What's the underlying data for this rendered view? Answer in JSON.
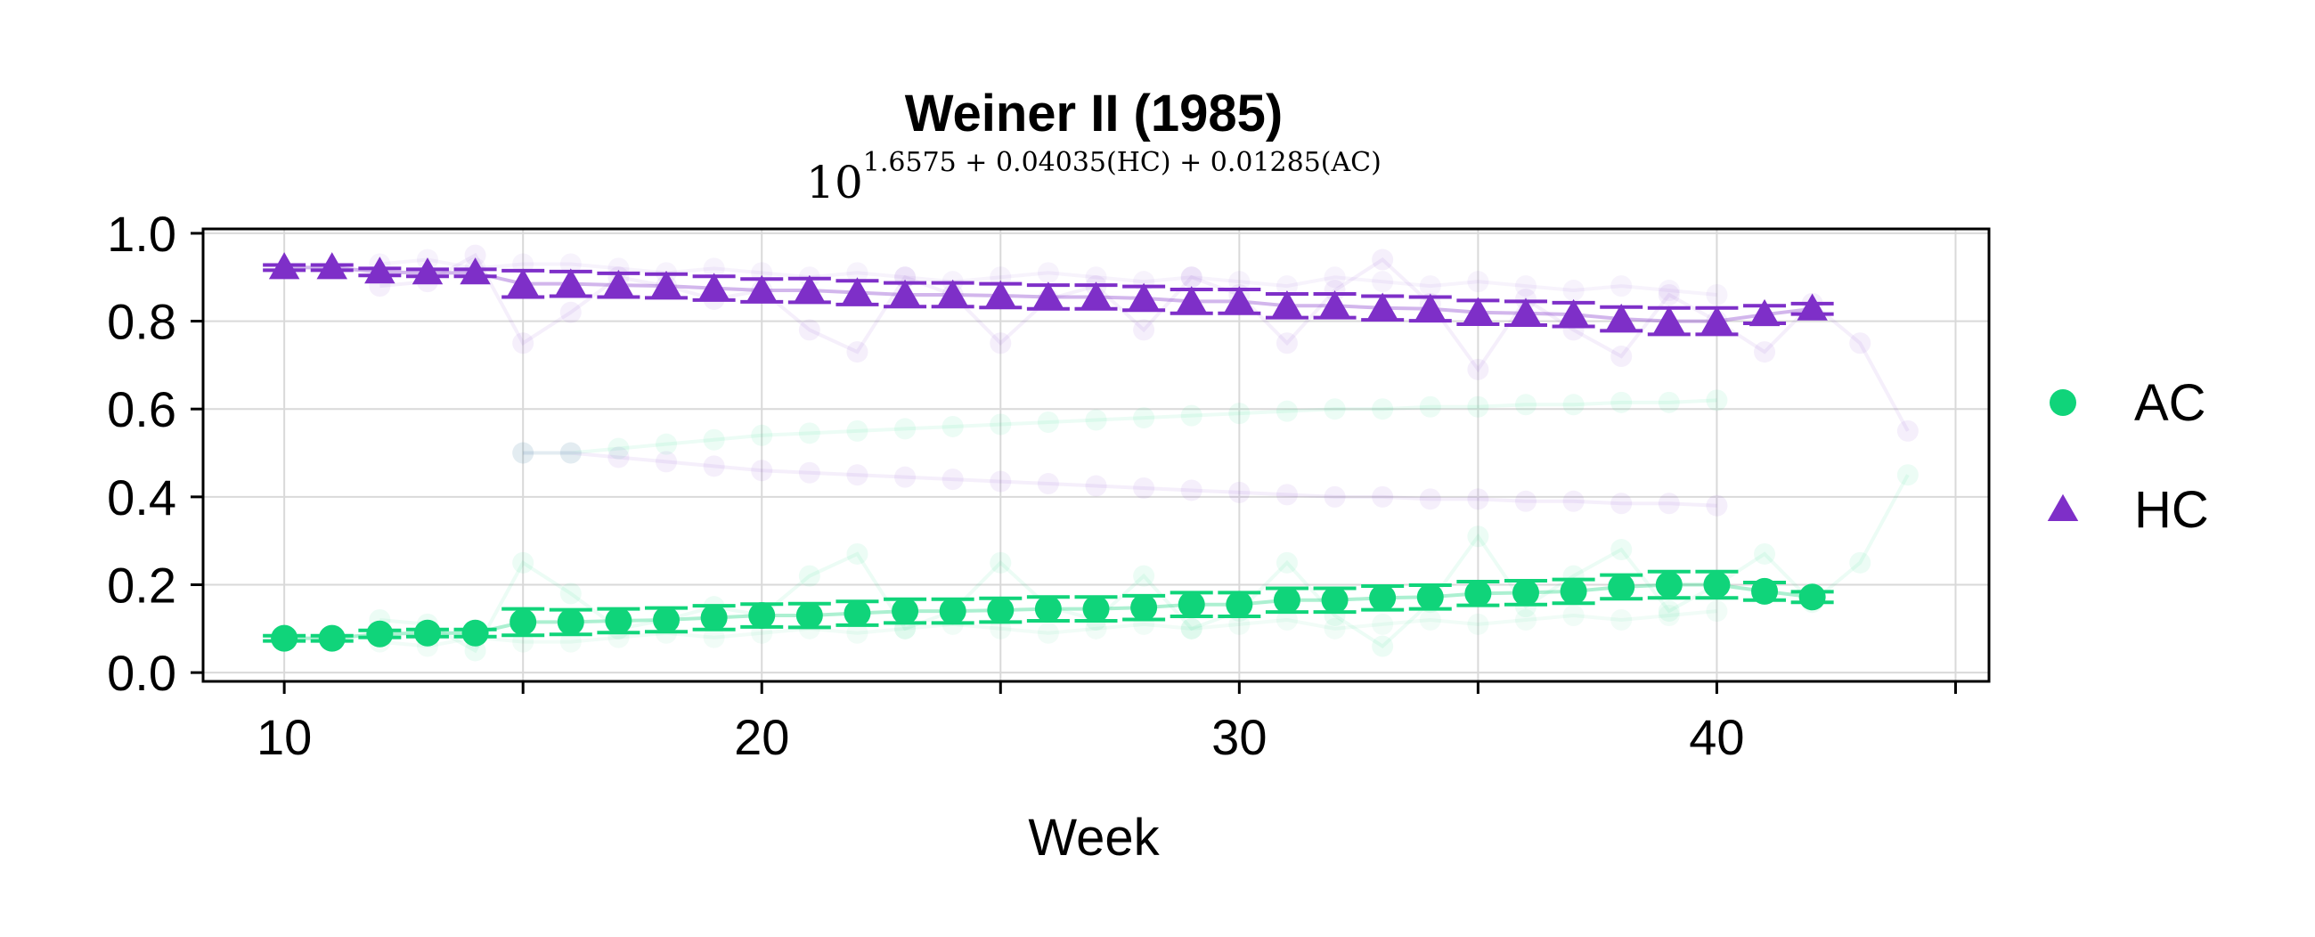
{
  "chart_data": {
    "type": "line",
    "title": "Weiner II (1985)",
    "subtitle": {
      "base": "10",
      "exponent": "1.6575 + 0.04035(HC) + 0.01285(AC)"
    },
    "xlabel": "Week",
    "ylabel": "",
    "xlim": [
      8.3,
      45.7
    ],
    "ylim": [
      -0.02,
      1.01
    ],
    "x_ticks": [
      10,
      15,
      20,
      25,
      30,
      35,
      40,
      45
    ],
    "x_tick_labels": [
      "10",
      "",
      "20",
      "",
      "30",
      "",
      "40",
      ""
    ],
    "y_ticks": [
      0.0,
      0.2,
      0.4,
      0.6,
      0.8,
      1.0
    ],
    "y_tick_labels": [
      "0.0",
      "0.2",
      "0.4",
      "0.6",
      "0.8",
      "1.0"
    ],
    "grid": true,
    "legend_position": "right",
    "series": [
      {
        "name": "AC",
        "color": "#10d47a",
        "marker": "circle",
        "x": [
          10,
          11,
          12,
          13,
          14,
          15,
          16,
          17,
          18,
          19,
          20,
          21,
          22,
          23,
          24,
          25,
          26,
          27,
          28,
          29,
          30,
          31,
          32,
          33,
          34,
          35,
          36,
          37,
          38,
          39,
          40,
          41,
          42
        ],
        "values": [
          0.078,
          0.078,
          0.088,
          0.09,
          0.09,
          0.115,
          0.115,
          0.118,
          0.12,
          0.125,
          0.13,
          0.13,
          0.135,
          0.14,
          0.14,
          0.142,
          0.145,
          0.145,
          0.148,
          0.155,
          0.155,
          0.165,
          0.165,
          0.17,
          0.172,
          0.18,
          0.182,
          0.185,
          0.195,
          0.2,
          0.2,
          0.185,
          0.172
        ],
        "error": [
          0.006,
          0.006,
          0.008,
          0.008,
          0.008,
          0.03,
          0.028,
          0.027,
          0.027,
          0.027,
          0.026,
          0.027,
          0.027,
          0.027,
          0.027,
          0.027,
          0.027,
          0.027,
          0.027,
          0.027,
          0.027,
          0.027,
          0.027,
          0.027,
          0.027,
          0.027,
          0.027,
          0.027,
          0.027,
          0.03,
          0.03,
          0.02,
          0.012
        ]
      },
      {
        "name": "HC",
        "color": "#7e2fc8",
        "marker": "triangle",
        "x": [
          10,
          11,
          12,
          13,
          14,
          15,
          16,
          17,
          18,
          19,
          20,
          21,
          22,
          23,
          24,
          25,
          26,
          27,
          28,
          29,
          30,
          31,
          32,
          33,
          34,
          35,
          36,
          37,
          38,
          39,
          40,
          41,
          42
        ],
        "values": [
          0.922,
          0.922,
          0.912,
          0.91,
          0.91,
          0.885,
          0.885,
          0.882,
          0.88,
          0.875,
          0.87,
          0.87,
          0.865,
          0.86,
          0.86,
          0.858,
          0.855,
          0.855,
          0.852,
          0.845,
          0.845,
          0.835,
          0.835,
          0.83,
          0.828,
          0.82,
          0.818,
          0.815,
          0.805,
          0.8,
          0.8,
          0.815,
          0.828
        ],
        "error": [
          0.006,
          0.006,
          0.008,
          0.008,
          0.008,
          0.03,
          0.028,
          0.027,
          0.027,
          0.027,
          0.026,
          0.027,
          0.027,
          0.027,
          0.027,
          0.027,
          0.027,
          0.027,
          0.027,
          0.027,
          0.027,
          0.027,
          0.027,
          0.027,
          0.027,
          0.027,
          0.027,
          0.027,
          0.027,
          0.03,
          0.03,
          0.02,
          0.012
        ]
      }
    ],
    "background_series": [
      {
        "color": "#10d47a",
        "opacity": 0.08,
        "x": [
          15,
          16,
          17,
          18,
          19,
          20,
          21,
          22,
          23,
          24,
          25,
          26,
          27,
          28,
          29,
          30,
          31,
          32,
          33,
          34,
          35,
          36,
          37,
          38,
          39,
          40
        ],
        "values": [
          0.5,
          0.5,
          0.51,
          0.52,
          0.53,
          0.54,
          0.545,
          0.55,
          0.555,
          0.56,
          0.565,
          0.57,
          0.575,
          0.58,
          0.585,
          0.59,
          0.595,
          0.6,
          0.6,
          0.605,
          0.605,
          0.61,
          0.61,
          0.615,
          0.615,
          0.62
        ]
      },
      {
        "color": "#7e2fc8",
        "opacity": 0.08,
        "x": [
          15,
          16,
          17,
          18,
          19,
          20,
          21,
          22,
          23,
          24,
          25,
          26,
          27,
          28,
          29,
          30,
          31,
          32,
          33,
          34,
          35,
          36,
          37,
          38,
          39,
          40
        ],
        "values": [
          0.5,
          0.5,
          0.49,
          0.48,
          0.47,
          0.46,
          0.455,
          0.45,
          0.445,
          0.44,
          0.435,
          0.43,
          0.425,
          0.42,
          0.415,
          0.41,
          0.405,
          0.4,
          0.4,
          0.395,
          0.395,
          0.39,
          0.39,
          0.385,
          0.385,
          0.38
        ]
      },
      {
        "color": "#10d47a",
        "opacity": 0.08,
        "x": [
          12,
          13,
          14,
          15,
          16,
          17,
          18,
          19,
          20,
          21,
          22,
          23,
          24,
          25,
          26,
          27,
          28,
          29,
          30,
          31,
          32,
          33,
          34,
          35,
          36,
          37,
          38,
          39,
          40,
          41,
          42,
          43,
          44
        ],
        "values": [
          0.12,
          0.11,
          0.05,
          0.25,
          0.18,
          0.1,
          0.12,
          0.15,
          0.13,
          0.22,
          0.27,
          0.1,
          0.14,
          0.25,
          0.15,
          0.12,
          0.22,
          0.1,
          0.14,
          0.25,
          0.13,
          0.06,
          0.16,
          0.31,
          0.15,
          0.22,
          0.28,
          0.14,
          0.2,
          0.27,
          0.16,
          0.25,
          0.45
        ]
      },
      {
        "color": "#7e2fc8",
        "opacity": 0.08,
        "x": [
          12,
          13,
          14,
          15,
          16,
          17,
          18,
          19,
          20,
          21,
          22,
          23,
          24,
          25,
          26,
          27,
          28,
          29,
          30,
          31,
          32,
          33,
          34,
          35,
          36,
          37,
          38,
          39,
          40,
          41,
          42,
          43,
          44
        ],
        "values": [
          0.88,
          0.89,
          0.95,
          0.75,
          0.82,
          0.9,
          0.88,
          0.85,
          0.87,
          0.78,
          0.73,
          0.9,
          0.86,
          0.75,
          0.85,
          0.88,
          0.78,
          0.9,
          0.86,
          0.75,
          0.87,
          0.94,
          0.84,
          0.69,
          0.85,
          0.78,
          0.72,
          0.86,
          0.8,
          0.73,
          0.84,
          0.75,
          0.55
        ]
      },
      {
        "color": "#10d47a",
        "opacity": 0.06,
        "x": [
          12,
          13,
          14,
          15,
          16,
          17,
          18,
          19,
          20,
          21,
          22,
          23,
          24,
          25,
          26,
          27,
          28,
          29,
          30,
          31,
          32,
          33,
          34,
          35,
          36,
          37,
          38,
          39,
          40
        ],
        "values": [
          0.07,
          0.06,
          0.08,
          0.07,
          0.07,
          0.08,
          0.09,
          0.08,
          0.09,
          0.1,
          0.09,
          0.1,
          0.11,
          0.1,
          0.09,
          0.1,
          0.11,
          0.1,
          0.11,
          0.12,
          0.1,
          0.11,
          0.12,
          0.11,
          0.12,
          0.13,
          0.12,
          0.13,
          0.14
        ]
      },
      {
        "color": "#7e2fc8",
        "opacity": 0.06,
        "x": [
          12,
          13,
          14,
          15,
          16,
          17,
          18,
          19,
          20,
          21,
          22,
          23,
          24,
          25,
          26,
          27,
          28,
          29,
          30,
          31,
          32,
          33,
          34,
          35,
          36,
          37,
          38,
          39,
          40
        ],
        "values": [
          0.93,
          0.94,
          0.92,
          0.93,
          0.93,
          0.92,
          0.91,
          0.92,
          0.91,
          0.9,
          0.91,
          0.9,
          0.89,
          0.9,
          0.91,
          0.9,
          0.89,
          0.9,
          0.89,
          0.88,
          0.9,
          0.89,
          0.88,
          0.89,
          0.88,
          0.87,
          0.88,
          0.87,
          0.86
        ]
      }
    ]
  }
}
